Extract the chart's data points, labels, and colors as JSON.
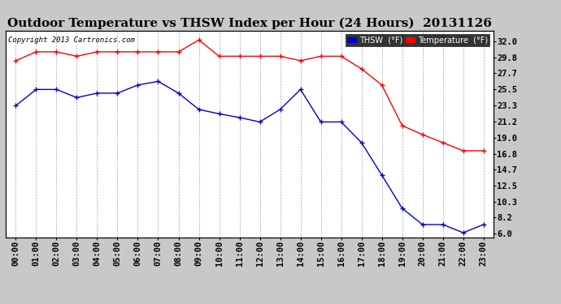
{
  "title": "Outdoor Temperature vs THSW Index per Hour (24 Hours)  20131126",
  "copyright": "Copyright 2013 Cartronics.com",
  "x_labels": [
    "00:00",
    "01:00",
    "02:00",
    "03:00",
    "04:00",
    "05:00",
    "06:00",
    "07:00",
    "08:00",
    "09:00",
    "10:00",
    "11:00",
    "12:00",
    "13:00",
    "14:00",
    "15:00",
    "16:00",
    "17:00",
    "18:00",
    "19:00",
    "20:00",
    "21:00",
    "22:00",
    "23:00"
  ],
  "temperature": [
    29.4,
    30.6,
    30.6,
    30.0,
    30.6,
    30.6,
    30.6,
    30.6,
    30.6,
    32.2,
    30.0,
    30.0,
    30.0,
    30.0,
    29.4,
    30.0,
    30.0,
    28.3,
    26.1,
    20.6,
    19.4,
    18.3,
    17.2,
    17.2
  ],
  "thsw": [
    23.3,
    25.5,
    25.5,
    24.4,
    25.0,
    25.0,
    26.1,
    26.6,
    25.0,
    22.8,
    22.2,
    21.7,
    21.1,
    22.8,
    25.5,
    21.1,
    21.1,
    18.3,
    13.9,
    9.4,
    7.2,
    7.2,
    6.1,
    7.2
  ],
  "ylim": [
    5.5,
    33.5
  ],
  "y_ticks_right": [
    6.0,
    8.2,
    10.3,
    12.5,
    14.7,
    16.8,
    19.0,
    21.2,
    23.3,
    25.5,
    27.7,
    29.8,
    32.0
  ],
  "bg_color": "#c8c8c8",
  "plot_bg_color": "#ffffff",
  "temp_color": "#ff0000",
  "thsw_color": "#0000cc",
  "grid_color": "#aaaaaa",
  "title_fontsize": 11,
  "copyright_fontsize": 6.5,
  "tick_fontsize": 7.5,
  "legend_thsw_bg": "#0000cc",
  "legend_temp_bg": "#ff0000"
}
